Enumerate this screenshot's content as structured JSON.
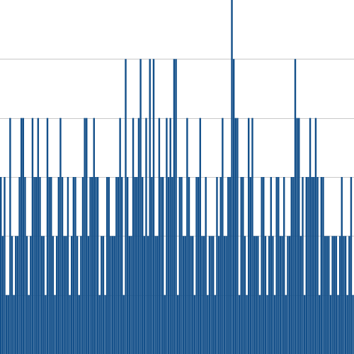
{
  "chart_data": {
    "type": "bar",
    "title": "",
    "xlabel": "",
    "ylabel": "",
    "ylim": [
      0,
      6
    ],
    "grid": true,
    "gridlines": [
      1,
      2,
      3,
      4,
      5
    ],
    "bar_color": "#14508a",
    "grid_color": "#c8c8c8",
    "values": [
      3,
      2,
      3,
      1,
      1,
      4,
      2,
      1,
      2,
      2,
      3,
      4,
      4,
      3,
      2,
      1,
      2,
      4,
      3,
      3,
      4,
      3,
      2,
      2,
      1,
      4,
      3,
      3,
      2,
      1,
      2,
      3,
      4,
      3,
      2,
      2,
      3,
      1,
      2,
      3,
      3,
      2,
      1,
      2,
      3,
      4,
      4,
      2,
      3,
      3,
      4,
      3,
      3,
      1,
      2,
      2,
      1,
      3,
      3,
      2,
      2,
      2,
      3,
      3,
      4,
      3,
      1,
      5,
      3,
      2,
      2,
      4,
      3,
      3,
      4,
      5,
      3,
      2,
      4,
      2,
      5,
      3,
      5,
      2,
      2,
      4,
      3,
      3,
      1,
      4,
      3,
      4,
      3,
      5,
      5,
      1,
      3,
      3,
      2,
      2,
      4,
      3,
      2,
      2,
      1,
      3,
      3,
      4,
      2,
      2,
      3,
      1,
      2,
      2,
      2,
      1,
      3,
      2,
      3,
      4,
      2,
      2,
      3,
      3,
      6,
      5,
      4,
      4,
      1,
      3,
      3,
      2,
      1,
      4,
      3,
      4,
      2,
      2,
      2,
      1,
      3,
      3,
      2,
      1,
      2,
      3,
      2,
      1,
      3,
      3,
      2,
      2,
      3,
      1,
      2,
      2,
      3,
      3,
      5,
      4,
      4,
      2,
      3,
      1,
      3,
      3,
      4,
      3,
      3,
      4,
      3,
      1,
      3,
      3,
      2,
      2,
      2,
      1,
      2,
      2,
      2,
      1,
      2,
      3,
      2,
      2,
      1,
      2,
      3,
      1
    ]
  }
}
